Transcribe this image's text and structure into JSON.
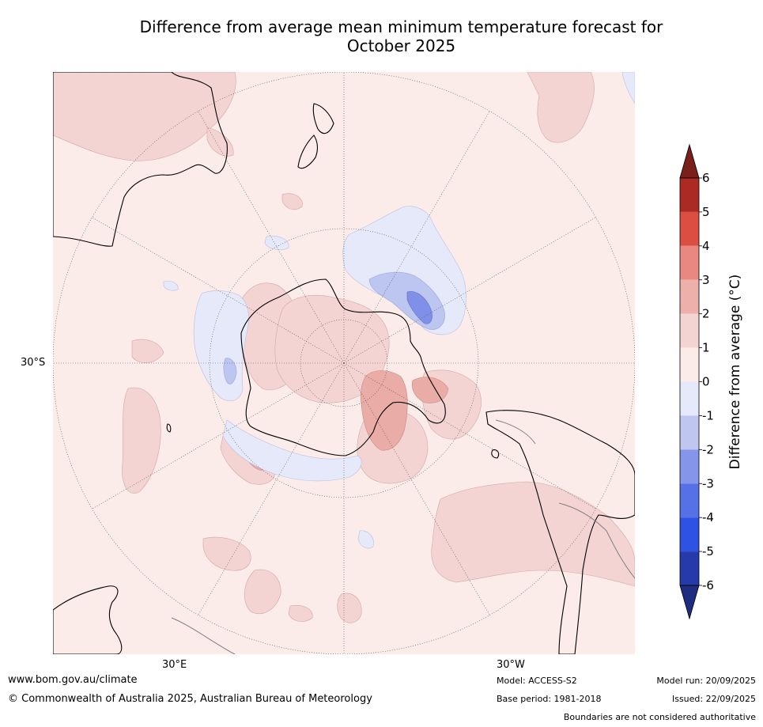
{
  "title": {
    "line1": "Difference from average mean minimum temperature forecast for",
    "line2": "October 2025"
  },
  "map": {
    "projection": "south-polar stereographic",
    "lat_label": "30°S",
    "lon_labels": [
      "30°E",
      "30°W"
    ],
    "colors": {
      "ocean_0_1": "#fbebe9",
      "pos_1_2": "#f4d4d2",
      "pos_2_3": "#eaaca6",
      "neg_0_1": "#e6e9fa",
      "neg_1_2": "#bdc5f1",
      "neg_2_3": "#8090e8",
      "coast": "#000000",
      "border": "#808080",
      "grid": "#555555"
    }
  },
  "colorbar": {
    "label": "Difference from average ($^\\circ$C)",
    "label_display": "Difference from average (°C)",
    "ticks": [
      "6",
      "5",
      "4",
      "3",
      "2",
      "1",
      "0",
      "-1",
      "-2",
      "-3",
      "-4",
      "-5",
      "-6"
    ],
    "levels": [
      6,
      5,
      4,
      3,
      2,
      1,
      0,
      -1,
      -2,
      -3,
      -4,
      -5,
      -6
    ],
    "bands": [
      {
        "from": 5,
        "to": 6,
        "color": "#ab2a24"
      },
      {
        "from": 4,
        "to": 5,
        "color": "#dc4d42"
      },
      {
        "from": 3,
        "to": 4,
        "color": "#e98881"
      },
      {
        "from": 2,
        "to": 3,
        "color": "#eeb0aa"
      },
      {
        "from": 1,
        "to": 2,
        "color": "#f4d4d2"
      },
      {
        "from": 0,
        "to": 1,
        "color": "#fbebe9"
      },
      {
        "from": -1,
        "to": 0,
        "color": "#e6e9fa"
      },
      {
        "from": -2,
        "to": -1,
        "color": "#bfc7f1"
      },
      {
        "from": -3,
        "to": -2,
        "color": "#8595e9"
      },
      {
        "from": -4,
        "to": -3,
        "color": "#5670e6"
      },
      {
        "from": -5,
        "to": -4,
        "color": "#2e52e4"
      },
      {
        "from": -6,
        "to": -5,
        "color": "#273aab"
      }
    ],
    "over_color": "#7a1f19",
    "under_color": "#1f2d80"
  },
  "footer": {
    "website": "www.bom.gov.au/climate",
    "copyright": "© Commonwealth of Australia 2025, Australian Bureau of Meteorology",
    "model": "Model: ACCESS-S2",
    "base_period": "Base period: 1981-2018",
    "model_run": "Model run: 20/09/2025",
    "issued": "Issued: 22/09/2025",
    "disclaimer": "Boundaries are not considered authoritative"
  }
}
